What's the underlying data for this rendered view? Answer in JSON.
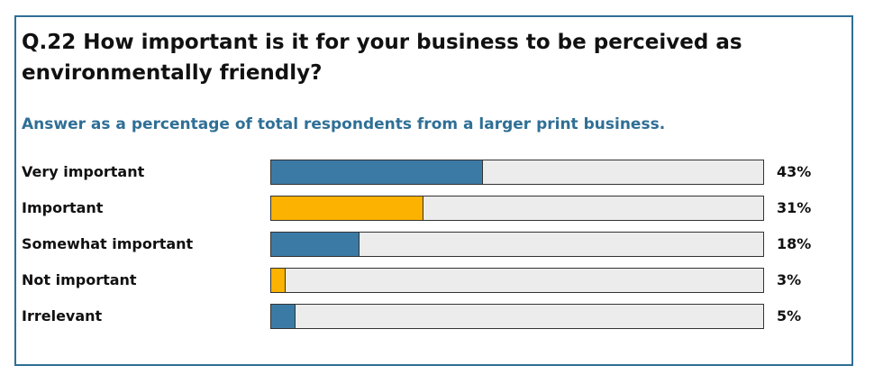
{
  "chart_data": {
    "type": "bar",
    "orientation": "horizontal",
    "title": "Q.22  How important is it for your business to be perceived as environmentally friendly?",
    "subtitle": "Answer as a percentage of total respondents from a larger print business.",
    "categories": [
      "Very important",
      "Important",
      "Somewhat important",
      "Not important",
      "Irrelevant"
    ],
    "values": [
      43,
      31,
      18,
      3,
      5
    ],
    "value_labels": [
      "43%",
      "31%",
      "18%",
      "3%",
      "5%"
    ],
    "xlim": [
      0,
      100
    ],
    "grid": false,
    "legend": "none",
    "colors": [
      "#3c7aa6",
      "#fbb200",
      "#3c7aa6",
      "#fbb200",
      "#3c7aa6"
    ],
    "track_color": "#ececec"
  }
}
